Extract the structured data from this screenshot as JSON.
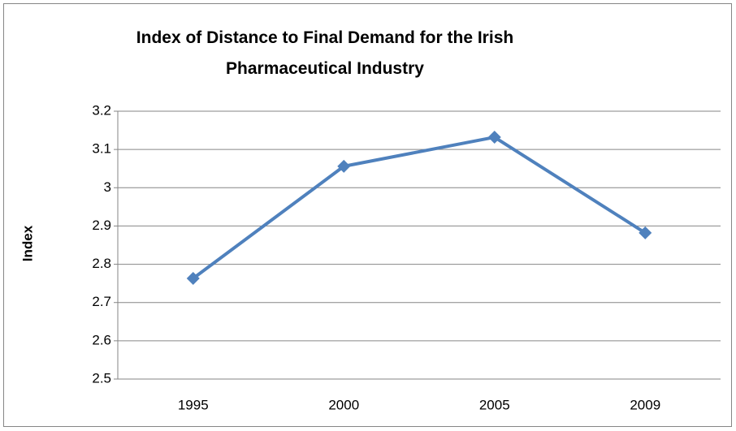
{
  "chart_data": {
    "type": "line",
    "title": "Index of Distance to Final Demand for the Irish Pharmaceutical Industry",
    "ylabel": "Index",
    "categories": [
      "1995",
      "2000",
      "2005",
      "2009"
    ],
    "series": [
      {
        "name": "Index",
        "color": "#4f81bd",
        "values": [
          2.763,
          3.056,
          3.132,
          2.882
        ]
      }
    ],
    "ylim": [
      2.5,
      3.2
    ],
    "yticks": [
      2.5,
      2.6,
      2.7,
      2.8,
      2.9,
      3,
      3.1,
      3.2
    ],
    "grid": true
  }
}
